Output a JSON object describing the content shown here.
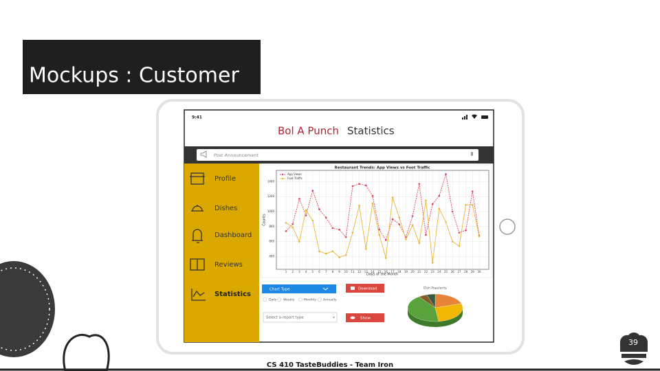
{
  "slide": {
    "title": "Mockups : Customer",
    "footer": "CS 410 TasteBuddies - Team Iron",
    "page_number": 39
  },
  "app": {
    "time": "9:41",
    "brand": "Bol A Punch",
    "page_title": "Statistics",
    "search_placeholder": "Post Announcement",
    "nav": [
      "Profile",
      "Dishes",
      "Dashboard",
      "Reviews",
      "Statistics"
    ],
    "controls": {
      "chart_type": "Chart Type",
      "download": "Download",
      "periods": [
        "Daily",
        "Weekly",
        "Monthly",
        "Annually"
      ],
      "report_select": "Select a report type",
      "show": "Show"
    }
  },
  "chart_data": [
    {
      "type": "line",
      "title": "Restaurant Trends: App Views vs Foot Traffic",
      "x_label": "Days of the Month",
      "y_label": "Counts",
      "x": [
        1,
        2,
        3,
        4,
        5,
        6,
        7,
        8,
        9,
        10,
        11,
        12,
        13,
        14,
        15,
        16,
        17,
        18,
        19,
        20,
        21,
        22,
        23,
        24,
        25,
        26,
        27,
        28,
        29,
        30
      ],
      "series": [
        {
          "name": "App Views",
          "color": "#d9435a",
          "dashed": true,
          "values": [
            740,
            835,
            1170,
            950,
            1280,
            1030,
            920,
            780,
            760,
            660,
            1340,
            1370,
            1350,
            1210,
            760,
            620,
            900,
            830,
            660,
            940,
            1370,
            690,
            1100,
            1210,
            1500,
            1000,
            720,
            750,
            1270,
            680
          ]
        },
        {
          "name": "Foot Traffic",
          "color": "#e8b53a",
          "dashed": false,
          "values": [
            850,
            790,
            600,
            1020,
            880,
            470,
            440,
            470,
            390,
            420,
            720,
            1080,
            500,
            1110,
            690,
            380,
            1190,
            920,
            630,
            820,
            580,
            1150,
            320,
            1040,
            860,
            600,
            540,
            1090,
            1090,
            670
          ]
        }
      ],
      "xlim": [
        -0.45,
        31.45
      ],
      "xticks": [
        1,
        2,
        3,
        4,
        5,
        6,
        7,
        8,
        9,
        10,
        11,
        12,
        13,
        14,
        15,
        16,
        17,
        18,
        19,
        20,
        21,
        22,
        23,
        24,
        25,
        26,
        27,
        28,
        29,
        30
      ],
      "ylim": [
        230,
        1550
      ],
      "yticks": [
        400,
        600,
        800,
        1000,
        1200,
        1400
      ],
      "grid": true,
      "legend": "upper left"
    },
    {
      "type": "pie",
      "title": "Dish Popularity",
      "values": [
        20,
        28,
        42,
        5,
        5
      ],
      "colors": [
        "#e8833a",
        "#f2b705",
        "#5aa33c",
        "#8b5a2b",
        "#3a5a40"
      ]
    }
  ]
}
